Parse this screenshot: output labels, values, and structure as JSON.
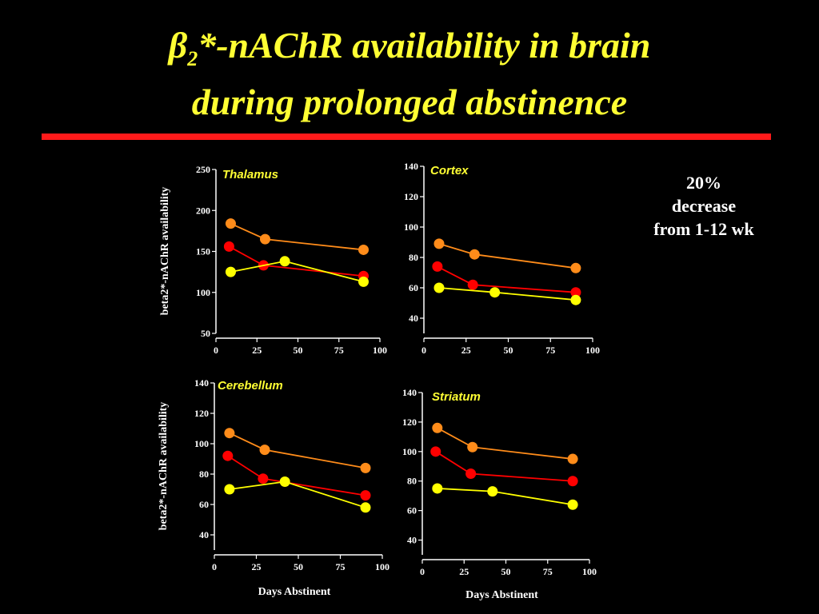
{
  "slide": {
    "title_symbol": "β",
    "title_subscript": "2",
    "title_rest": "*-nAChR availability in brain",
    "title_line2": "during prolonged abstinence",
    "note_lines": [
      "20%",
      "decrease",
      "from 1-12 wk"
    ],
    "colors": {
      "background": "#000000",
      "title": "#ffff33",
      "rule": "#ff1a1a",
      "note": "#ffffff",
      "axis": "#ffffff",
      "panel_label": "#ffff33"
    }
  },
  "chart_data": [
    {
      "type": "line",
      "panel_label": "Thalamus",
      "ylabel": "beta2*-nAChR availability",
      "xlabel": "",
      "xlim": [
        0,
        100
      ],
      "ylim": [
        50,
        250
      ],
      "xticks": [
        0,
        25,
        50,
        75,
        100
      ],
      "yticks": [
        50,
        100,
        150,
        200,
        250
      ],
      "series": [
        {
          "color": "#ff8c1a",
          "x": [
            9,
            30,
            90
          ],
          "y": [
            184,
            165,
            152
          ]
        },
        {
          "color": "#ff0000",
          "x": [
            8,
            29,
            90
          ],
          "y": [
            156,
            133,
            120
          ]
        },
        {
          "color": "#ffff00",
          "x": [
            9,
            42,
            90
          ],
          "y": [
            125,
            138,
            113
          ]
        }
      ]
    },
    {
      "type": "line",
      "panel_label": "Cortex",
      "ylabel": "",
      "xlabel": "",
      "xlim": [
        0,
        100
      ],
      "ylim": [
        30,
        140
      ],
      "xticks": [
        0,
        25,
        50,
        75,
        100
      ],
      "yticks": [
        40,
        60,
        80,
        100,
        120,
        140
      ],
      "series": [
        {
          "color": "#ff8c1a",
          "x": [
            9,
            30,
            90
          ],
          "y": [
            89,
            82,
            73
          ]
        },
        {
          "color": "#ff0000",
          "x": [
            8,
            29,
            90
          ],
          "y": [
            74,
            62,
            57
          ]
        },
        {
          "color": "#ffff00",
          "x": [
            9,
            42,
            90
          ],
          "y": [
            60,
            57,
            52
          ]
        }
      ]
    },
    {
      "type": "line",
      "panel_label": "Cerebellum",
      "ylabel": "beta2*-nAChR availability",
      "xlabel": "Days Abstinent",
      "xlim": [
        0,
        100
      ],
      "ylim": [
        30,
        140
      ],
      "xticks": [
        0,
        25,
        50,
        75,
        100
      ],
      "yticks": [
        40,
        60,
        80,
        100,
        120,
        140
      ],
      "series": [
        {
          "color": "#ff8c1a",
          "x": [
            9,
            30,
            90
          ],
          "y": [
            107,
            96,
            84
          ]
        },
        {
          "color": "#ff0000",
          "x": [
            8,
            29,
            90
          ],
          "y": [
            92,
            77,
            66
          ]
        },
        {
          "color": "#ffff00",
          "x": [
            9,
            42,
            90
          ],
          "y": [
            70,
            75,
            58
          ]
        }
      ]
    },
    {
      "type": "line",
      "panel_label": "Striatum",
      "ylabel": "",
      "xlabel": "Days Abstinent",
      "xlim": [
        0,
        100
      ],
      "ylim": [
        30,
        140
      ],
      "xticks": [
        0,
        25,
        50,
        75,
        100
      ],
      "yticks": [
        40,
        60,
        80,
        100,
        120,
        140
      ],
      "series": [
        {
          "color": "#ff8c1a",
          "x": [
            9,
            30,
            90
          ],
          "y": [
            116,
            103,
            95
          ]
        },
        {
          "color": "#ff0000",
          "x": [
            8,
            29,
            90
          ],
          "y": [
            100,
            85,
            80
          ]
        },
        {
          "color": "#ffff00",
          "x": [
            9,
            42,
            90
          ],
          "y": [
            75,
            73,
            64
          ]
        }
      ]
    }
  ]
}
